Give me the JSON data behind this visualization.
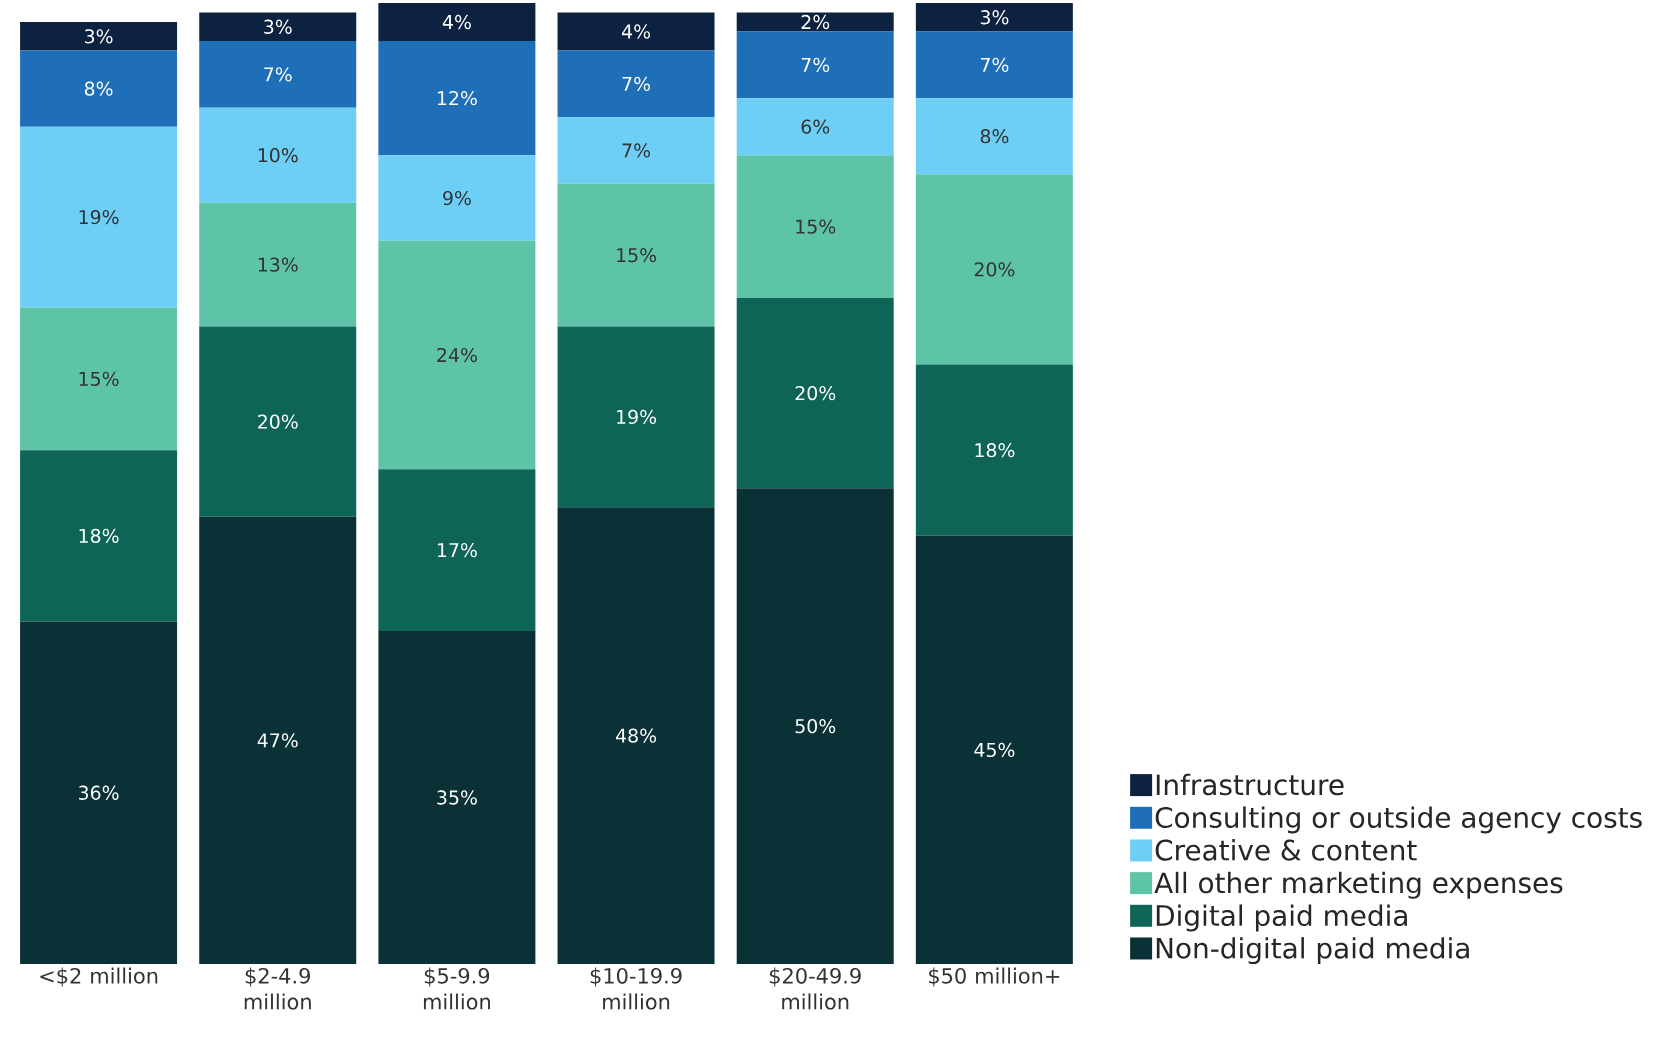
{
  "chart_data": {
    "type": "bar",
    "stacked": true,
    "legend": "bottom right",
    "categories": [
      "<$2 million",
      "$2-4.9 million",
      "$5-9.9 million",
      "$10-19.9 million",
      "$20-49.9 million",
      "$50 million+"
    ],
    "series": [
      {
        "name": "Non-digital paid media",
        "color": "#0a3236",
        "values": [
          36,
          47,
          35,
          48,
          50,
          45
        ],
        "value_labels": [
          "36%",
          "47%",
          "35%",
          "48%",
          "50%",
          "45%"
        ]
      },
      {
        "name": "Digital paid media",
        "color": "#0e6457",
        "values": [
          18,
          20,
          17,
          19,
          20,
          18
        ],
        "value_labels": [
          "18%",
          "20%",
          "17%",
          "19%",
          "20%",
          "18%"
        ]
      },
      {
        "name": "All other marketing expenses",
        "color": "#5ec4a8",
        "values": [
          15,
          13,
          24,
          15,
          15,
          20
        ],
        "value_labels": [
          "15%",
          "13%",
          "24%",
          "15%",
          "15%",
          "20%"
        ]
      },
      {
        "name": "Creative & content",
        "color": "#6dcff6",
        "values": [
          19,
          10,
          9,
          7,
          6,
          8
        ],
        "value_labels": [
          "19%",
          "10%",
          "9%",
          "7%",
          "6%",
          "8%"
        ]
      },
      {
        "name": "Consulting or outside agency costs",
        "color": "#1f6fb8",
        "values": [
          8,
          7,
          12,
          7,
          7,
          7
        ],
        "value_labels": [
          "8%",
          "7%",
          "12%",
          "7%",
          "7%",
          "7%"
        ]
      },
      {
        "name": "Infrastructure",
        "color": "#0d2240",
        "values": [
          3,
          3,
          4,
          4,
          2,
          3
        ],
        "value_labels": [
          "3%",
          "3%",
          "4%",
          "4%",
          "2%",
          "3%"
        ]
      }
    ]
  }
}
